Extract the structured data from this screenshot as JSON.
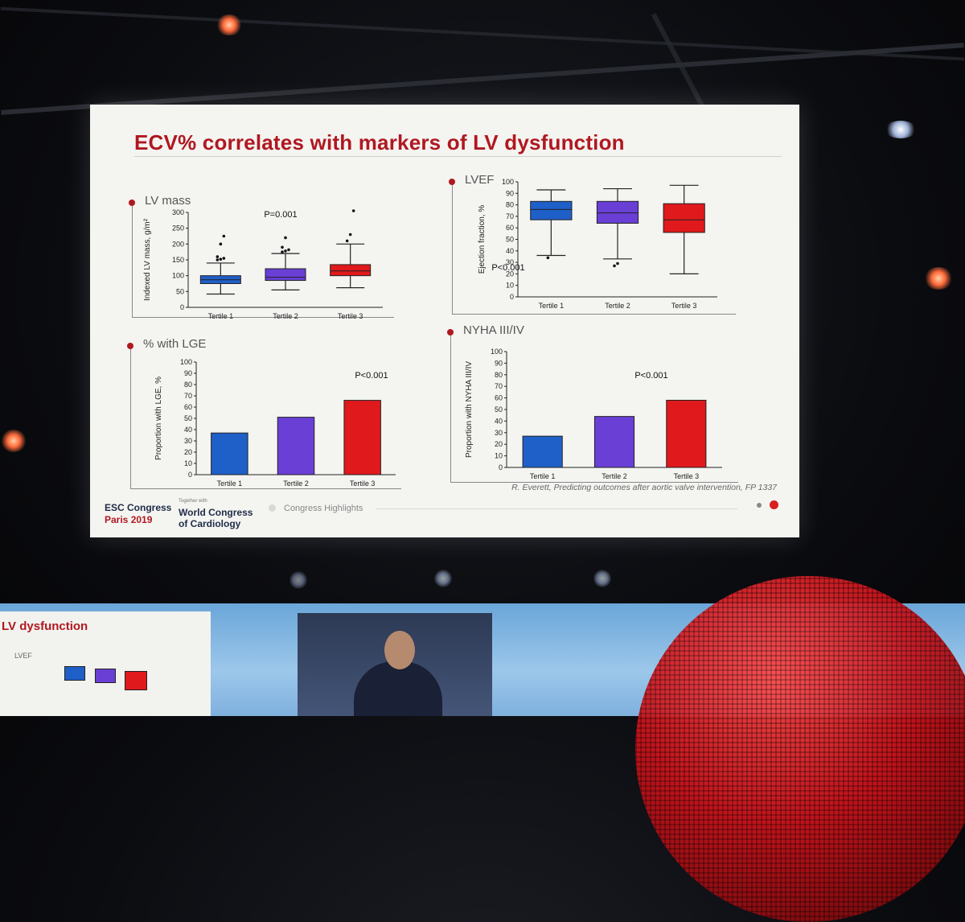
{
  "slide": {
    "title": "ECV% correlates with markers of LV dysfunction",
    "citation": "R. Everett, Predicting outcomes after aortic valve intervention, FP 1337",
    "footer": {
      "congress_line1": "ESC Congress",
      "congress_line2": "Paris 2019",
      "together_with": "Together with",
      "world_line1": "World Congress",
      "world_line2": "of Cardiology",
      "highlights": "Congress Highlights"
    }
  },
  "lower_stage": {
    "mini_slide_title": "LV dysfunction",
    "mini_slide_sub": "LVEF"
  },
  "colors": {
    "accent": "#b01820",
    "tertile1": "#1f5fc8",
    "tertile2": "#6a3fd6",
    "tertile3": "#e0191c"
  },
  "chart_data": [
    {
      "id": "lv-mass",
      "type": "box",
      "title": "LV mass",
      "ylabel": "Indexed LV mass, g/m²",
      "categories": [
        "Tertile 1",
        "Tertile 2",
        "Tertile 3"
      ],
      "ylim": [
        0,
        300
      ],
      "yticks": [
        0,
        50,
        100,
        150,
        200,
        250,
        300
      ],
      "boxes": [
        {
          "min": 42,
          "q1": 75,
          "median": 87,
          "q3": 100,
          "max": 140,
          "outliers": [
            150,
            152,
            155,
            160,
            200,
            225
          ]
        },
        {
          "min": 55,
          "q1": 85,
          "median": 95,
          "q3": 122,
          "max": 170,
          "outliers": [
            175,
            178,
            182,
            190,
            220
          ]
        },
        {
          "min": 62,
          "q1": 100,
          "median": 115,
          "q3": 135,
          "max": 200,
          "outliers": [
            210,
            230,
            305
          ]
        }
      ],
      "annotation": "P=0.001"
    },
    {
      "id": "lvef",
      "type": "box",
      "title": "LVEF",
      "ylabel": "Ejection fraction, %",
      "categories": [
        "Tertile 1",
        "Tertile 2",
        "Tertile 3"
      ],
      "ylim": [
        0,
        100
      ],
      "yticks": [
        0,
        10,
        20,
        30,
        40,
        50,
        60,
        70,
        80,
        90,
        100
      ],
      "boxes": [
        {
          "min": 36,
          "q1": 67,
          "median": 76,
          "q3": 83,
          "max": 93,
          "outliers": [
            34
          ]
        },
        {
          "min": 33,
          "q1": 64,
          "median": 73,
          "q3": 83,
          "max": 94,
          "outliers": [
            27,
            29
          ]
        },
        {
          "min": 20,
          "q1": 56,
          "median": 67,
          "q3": 81,
          "max": 97,
          "outliers": []
        }
      ],
      "annotation": "P<0.001"
    },
    {
      "id": "lge",
      "type": "bar",
      "title": "% with LGE",
      "ylabel": "Proportion with LGE, %",
      "categories": [
        "Tertile 1",
        "Tertile 2",
        "Tertile 3"
      ],
      "values": [
        37,
        51,
        66
      ],
      "ylim": [
        0,
        100
      ],
      "yticks": [
        0,
        10,
        20,
        30,
        40,
        50,
        60,
        70,
        80,
        90,
        100
      ],
      "annotation": "P<0.001"
    },
    {
      "id": "nyha",
      "type": "bar",
      "title": "NYHA III/IV",
      "ylabel": "Proportion with NYHA III/IV",
      "categories": [
        "Tertile 1",
        "Tertile 2",
        "Tertile 3"
      ],
      "values": [
        27,
        44,
        58
      ],
      "ylim": [
        0,
        100
      ],
      "yticks": [
        0,
        10,
        20,
        30,
        40,
        50,
        60,
        70,
        80,
        90,
        100
      ],
      "annotation": "P<0.001"
    }
  ]
}
